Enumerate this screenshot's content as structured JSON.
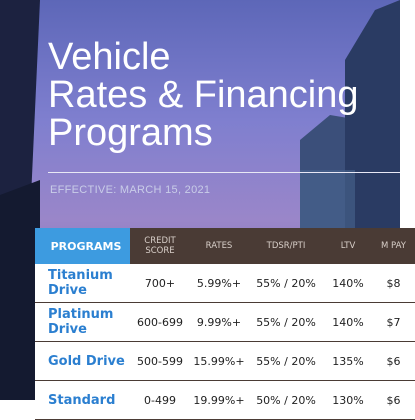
{
  "header": {
    "title_lines": [
      "Vehicle",
      "Rates & Financing",
      "Programs"
    ],
    "effective": "EFFECTIVE: MARCH 15, 2021"
  },
  "table": {
    "columns": [
      "PROGRAMS",
      "CREDIT SCORE",
      "RATES",
      "TDSR/PTI",
      "LTV",
      "M PAY"
    ],
    "rows": [
      [
        "Titanium Drive",
        "700+",
        "5.99%+",
        "55% / 20%",
        "140%",
        "$8"
      ],
      [
        "Platinum Drive",
        "600-699",
        "9.99%+",
        "55% / 20%",
        "140%",
        "$7"
      ],
      [
        "Gold Drive",
        "500-599",
        "15.99%+",
        "55% / 20%",
        "135%",
        "$6"
      ],
      [
        "Standard",
        "0-499",
        "19.99%+",
        "50% / 20%",
        "130%",
        "$6"
      ]
    ]
  }
}
